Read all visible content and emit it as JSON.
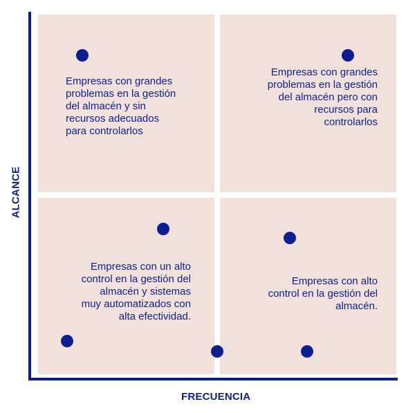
{
  "colors": {
    "accent": "#0b1f8f",
    "quadrant_fill": "#f1e1da",
    "background": "#ffffff"
  },
  "axes": {
    "x_label": "FRECUENCIA",
    "y_label": "ALCANCE"
  },
  "quadrants": {
    "top_left": "Empresas con grandes\nproblemas en la gestión\ndel almacén y sin\nrecursos adecuados\npara controlarlos",
    "top_right": "Empresas con grandes\nproblemas en la gestión\ndel almacén pero con\nrecursos para\ncontrolarlos",
    "bottom_left": "Empresas con un alto\ncontrol en la gestión del\nalmacén y sistemas\nmuy automatizados con\nalta efectividad.",
    "bottom_right": "Empresas con alto\ncontrol en la gestión del\nalmacén."
  }
}
